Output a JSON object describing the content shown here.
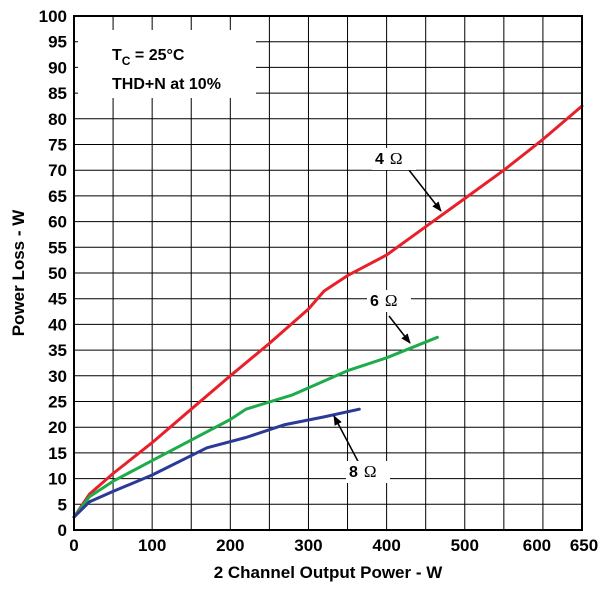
{
  "chart_data": {
    "type": "line",
    "title": "",
    "xlabel": "2 Channel Output Power - W",
    "ylabel": "Power Loss - W",
    "xlim": [
      0,
      650
    ],
    "ylim": [
      0,
      100
    ],
    "x_ticks": [
      0,
      100,
      200,
      300,
      400,
      500,
      600,
      650
    ],
    "x_tick_labels": [
      "0",
      "100",
      "200",
      "300",
      "400",
      "500",
      "600",
      "650"
    ],
    "y_ticks": [
      0,
      5,
      10,
      15,
      20,
      25,
      30,
      35,
      40,
      45,
      50,
      55,
      60,
      65,
      70,
      75,
      80,
      85,
      90,
      95,
      100
    ],
    "grid": true,
    "annotations": {
      "tc_prefix": "T",
      "tc_sub": "C",
      "tc_value": " = 25°C",
      "thd": "THD+N at 10%"
    },
    "series": [
      {
        "name": "4 Ω",
        "label_num": "4",
        "label_unit": "Ω",
        "color": "#e8202a",
        "x": [
          0,
          20,
          50,
          100,
          150,
          200,
          250,
          300,
          320,
          350,
          400,
          450,
          500,
          550,
          600,
          650
        ],
        "y": [
          2.5,
          7,
          11,
          17,
          23.5,
          30,
          36.3,
          43,
          46.5,
          49.5,
          53.5,
          59,
          64.5,
          70,
          76,
          82.5
        ]
      },
      {
        "name": "6 Ω",
        "label_num": "6",
        "label_unit": "Ω",
        "color": "#1dab4b",
        "x": [
          0,
          20,
          50,
          100,
          150,
          200,
          220,
          280,
          350,
          400,
          465
        ],
        "y": [
          2.5,
          6.5,
          9.5,
          13.5,
          17.5,
          21.5,
          23.5,
          26.3,
          31,
          33.5,
          37.5
        ]
      },
      {
        "name": "8 Ω",
        "label_num": "8",
        "label_unit": "Ω",
        "color": "#2b3a97",
        "x": [
          0,
          20,
          50,
          100,
          170,
          220,
          270,
          320,
          365
        ],
        "y": [
          2.5,
          5.5,
          7.5,
          10.7,
          16,
          18,
          20.5,
          22,
          23.5
        ]
      }
    ]
  }
}
